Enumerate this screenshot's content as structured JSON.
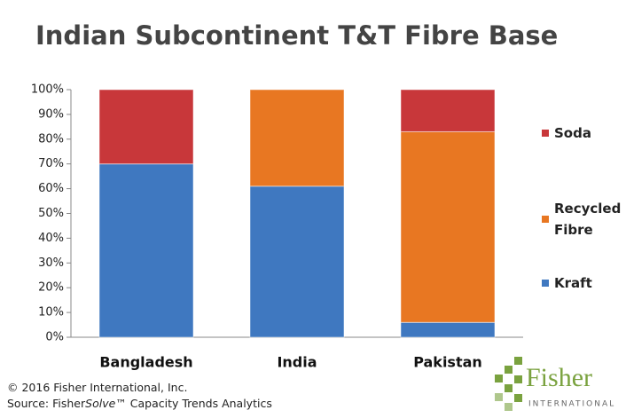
{
  "chart_data": {
    "type": "stacked_bar",
    "title": "Indian Subcontinent T&T Fibre Base",
    "categories": [
      "Bangladesh",
      "India",
      "Pakistan"
    ],
    "series": [
      {
        "name": "Kraft",
        "color": "#3f78c0",
        "values": [
          70,
          61,
          6
        ]
      },
      {
        "name": "Recycled Fibre",
        "color": "#e87722",
        "values": [
          0,
          39,
          77
        ]
      },
      {
        "name": "Soda",
        "color": "#c8373a",
        "values": [
          30,
          0,
          17
        ]
      }
    ],
    "ylim": [
      0,
      100
    ],
    "yticks": [
      {
        "value": 0,
        "label": "0%"
      },
      {
        "value": 10,
        "label": "10%"
      },
      {
        "value": 20,
        "label": "20%"
      },
      {
        "value": 30,
        "label": "30%"
      },
      {
        "value": 40,
        "label": "40%"
      },
      {
        "value": 50,
        "label": "50%"
      },
      {
        "value": 60,
        "label": "60%"
      },
      {
        "value": 70,
        "label": "70%"
      },
      {
        "value": 80,
        "label": "80%"
      },
      {
        "value": 90,
        "label": "90%"
      },
      {
        "value": 100,
        "label": "100%"
      }
    ],
    "legend": "right"
  },
  "footer": {
    "copyright": "© 2016 Fisher International, Inc.",
    "source_prefix": "Source: Fisher",
    "source_italic": "Solve",
    "source_suffix": "™ Capacity Trends Analytics"
  },
  "logo": {
    "name": "Fisher",
    "sub": "INTERNATIONAL"
  }
}
